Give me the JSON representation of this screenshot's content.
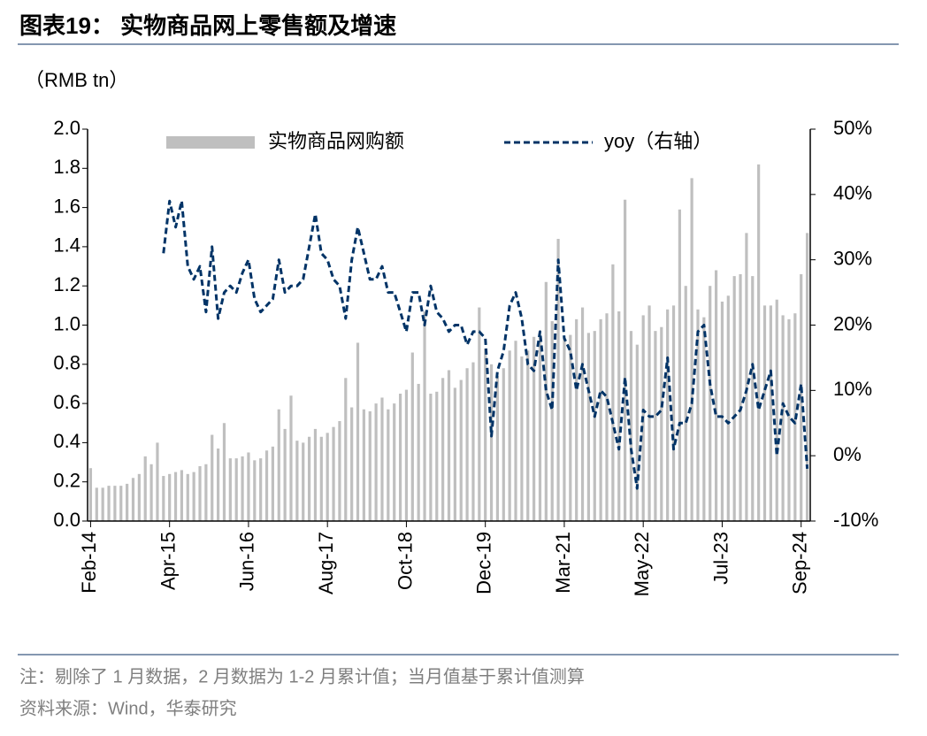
{
  "chart_data": {
    "type": "bar_line",
    "title": "图表19： 实物商品网上零售额及增速",
    "y_unit": "（RMB tn）",
    "note": "注：剔除了 1 月数据，2 月数据为 1-2 月累计值；当月值基于累计值测算",
    "source": "资料来源：Wind，华泰研究",
    "categories": [
      "Feb-14",
      null,
      null,
      null,
      null,
      null,
      null,
      null,
      null,
      null,
      null,
      null,
      null,
      "Apr-15",
      null,
      null,
      null,
      null,
      null,
      null,
      null,
      null,
      null,
      null,
      null,
      null,
      "Jun-16",
      null,
      null,
      null,
      null,
      null,
      null,
      null,
      null,
      null,
      null,
      null,
      null,
      "Aug-17",
      null,
      null,
      null,
      null,
      null,
      null,
      null,
      null,
      null,
      null,
      null,
      null,
      "Oct-18",
      null,
      null,
      null,
      null,
      null,
      null,
      null,
      null,
      null,
      null,
      null,
      null,
      "Dec-19",
      null,
      null,
      null,
      null,
      null,
      null,
      null,
      null,
      null,
      null,
      null,
      null,
      "Mar-21",
      null,
      null,
      null,
      null,
      null,
      null,
      null,
      null,
      null,
      null,
      null,
      null,
      "May-22",
      null,
      null,
      null,
      null,
      null,
      null,
      null,
      null,
      null,
      null,
      null,
      null,
      "Jul-23",
      null,
      null,
      null,
      null,
      null,
      null,
      null,
      null,
      null,
      null,
      null,
      null,
      "Sep-24",
      null
    ],
    "series": [
      {
        "name": "实物商品网购额",
        "color": "#bfbfbf",
        "values": [
          0.27,
          0.17,
          0.17,
          0.18,
          0.18,
          0.18,
          0.19,
          0.22,
          0.24,
          0.33,
          0.29,
          0.4,
          0.23,
          0.24,
          0.25,
          0.26,
          0.24,
          0.25,
          0.28,
          0.29,
          0.44,
          0.37,
          0.5,
          0.32,
          0.32,
          0.33,
          0.35,
          0.31,
          0.32,
          0.36,
          0.38,
          0.57,
          0.47,
          0.64,
          0.41,
          0.4,
          0.43,
          0.47,
          0.43,
          0.45,
          0.48,
          0.51,
          0.73,
          0.58,
          0.91,
          0.57,
          0.56,
          0.6,
          0.63,
          0.57,
          0.6,
          0.65,
          0.67,
          0.86,
          0.7,
          1.07,
          0.65,
          0.66,
          0.73,
          0.77,
          0.68,
          0.72,
          0.78,
          0.81,
          1.09,
          0.88,
          0.8,
          0.74,
          0.78,
          0.87,
          0.92,
          0.84,
          0.87,
          0.94,
          0.95,
          1.22,
          1.02,
          1.44,
          0.93,
          0.95,
          1.03,
          1.09,
          0.96,
          0.97,
          1.03,
          1.06,
          1.31,
          1.07,
          1.64,
          0.97,
          0.9,
          1.05,
          1.1,
          0.97,
          0.99,
          1.08,
          1.1,
          1.59,
          1.2,
          1.75,
          1.08,
          1.04,
          1.2,
          1.28,
          1.12,
          1.15,
          1.25,
          1.26,
          1.47,
          1.25,
          1.82,
          1.1,
          1.1,
          1.13,
          1.05,
          1.03,
          1.06,
          1.26,
          1.47
        ]
      },
      {
        "name": "yoy（右轴）",
        "color": "#003366",
        "axis": "y2",
        "values": [
          null,
          null,
          null,
          null,
          null,
          null,
          null,
          null,
          null,
          null,
          null,
          null,
          31,
          39,
          35,
          39,
          29,
          27,
          29,
          22,
          32,
          21,
          25,
          26,
          25,
          28,
          30,
          24,
          22,
          23,
          24,
          30,
          25,
          26,
          26,
          27,
          32,
          37,
          31,
          30,
          27,
          26,
          21,
          30,
          35,
          31,
          27,
          27,
          29,
          25,
          25,
          22,
          19,
          25,
          25,
          20,
          26,
          22,
          21,
          19,
          20,
          20,
          17,
          19,
          19,
          18,
          3,
          13,
          16,
          23,
          25,
          21,
          14,
          13,
          19,
          10,
          7,
          30,
          18,
          16,
          10,
          14,
          10,
          6,
          10,
          9,
          5,
          1,
          12,
          1,
          -5,
          7,
          6,
          6,
          7,
          15,
          1,
          5,
          5,
          8,
          19,
          20,
          11,
          6,
          6,
          5,
          6,
          7,
          10,
          14,
          7,
          10,
          13,
          0,
          8,
          6,
          5,
          11,
          -2
        ]
      }
    ],
    "ylim": [
      0,
      2
    ],
    "yticks": [
      {
        "value": 0,
        "label": "0.0"
      },
      0.2,
      0.4,
      0.6,
      0.8,
      {
        "value": 1,
        "label": "1.0"
      },
      1.2,
      1.4,
      1.6,
      1.8,
      {
        "value": 2,
        "label": "2.0"
      }
    ],
    "y2lim": [
      -10,
      50
    ],
    "y2ticks": [
      {
        "value": -10,
        "label": "-10%"
      },
      {
        "value": 0,
        "label": "0%"
      },
      {
        "value": 10,
        "label": "10%"
      },
      {
        "value": 20,
        "label": "20%"
      },
      {
        "value": 30,
        "label": "30%"
      },
      {
        "value": 40,
        "label": "40%"
      },
      {
        "value": 50,
        "label": "50%"
      }
    ],
    "grid": false,
    "legend": "top"
  }
}
